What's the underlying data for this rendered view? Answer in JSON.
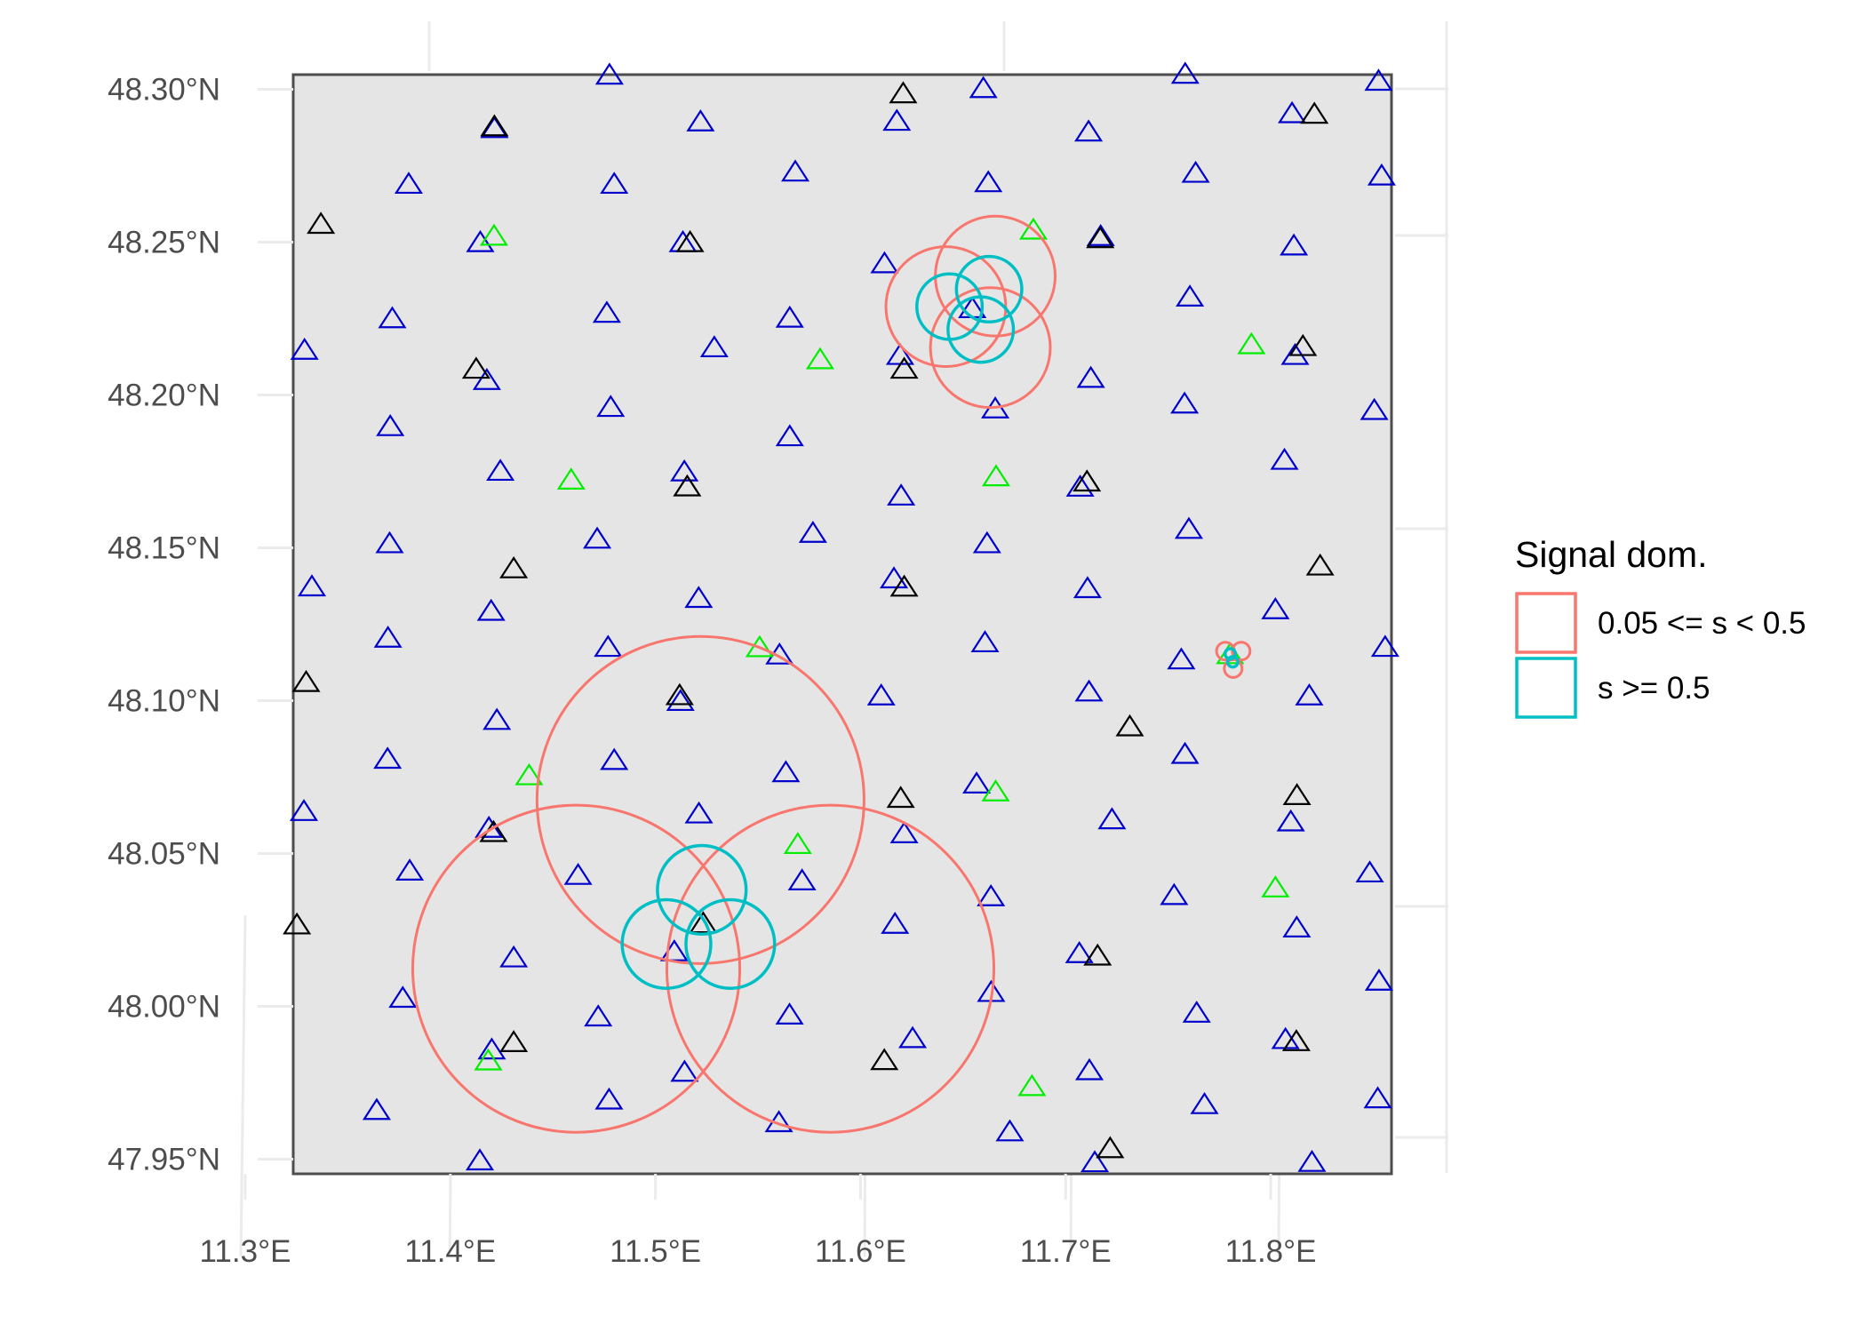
{
  "colors": {
    "circle_low": "#F8766D",
    "circle_high": "#00BFC4",
    "station_blue": "#0000CC",
    "station_green": "#00EE00",
    "station_black": "#000000",
    "panel_fill": "#E5E5E5",
    "panel_border": "#4D4D4D",
    "grid": "#EBEBEB"
  },
  "chart_data": {
    "type": "scatter",
    "title": "",
    "xlabel": "",
    "ylabel": "",
    "xlim": [
      11.3234,
      11.8589
    ],
    "ylim": [
      47.9452,
      48.3048
    ],
    "x_ticks": [
      {
        "value": 11.3,
        "label": "11.3°E"
      },
      {
        "value": 11.4,
        "label": "11.4°E"
      },
      {
        "value": 11.5,
        "label": "11.5°E"
      },
      {
        "value": 11.6,
        "label": "11.6°E"
      },
      {
        "value": 11.7,
        "label": "11.7°E"
      },
      {
        "value": 11.8,
        "label": "11.8°E"
      }
    ],
    "y_ticks": [
      {
        "value": 47.95,
        "label": "47.95°N"
      },
      {
        "value": 48.0,
        "label": "48.00°N"
      },
      {
        "value": 48.05,
        "label": "48.05°N"
      },
      {
        "value": 48.1,
        "label": "48.10°N"
      },
      {
        "value": 48.15,
        "label": "48.15°N"
      },
      {
        "value": 48.2,
        "label": "48.20°N"
      },
      {
        "value": 48.25,
        "label": "48.25°N"
      },
      {
        "value": 48.3,
        "label": "48.30°N"
      }
    ],
    "legend": {
      "title": "Signal dom.",
      "position": "right",
      "entries": [
        {
          "label": "0.05 <= s < 0.5",
          "color": "#F8766D"
        },
        {
          "label": "s >= 0.5",
          "color": "#00BFC4"
        }
      ]
    },
    "circles": {
      "low": [
        {
          "lon": 11.522,
          "lat": 48.0675,
          "radius_deg_lat": 0.0535
        },
        {
          "lon": 11.4614,
          "lat": 48.0123,
          "radius_deg_lat": 0.0535
        },
        {
          "lon": 11.5853,
          "lat": 48.0123,
          "radius_deg_lat": 0.0535
        },
        {
          "lon": 11.6657,
          "lat": 48.2389,
          "radius_deg_lat": 0.0196
        },
        {
          "lon": 11.6416,
          "lat": 48.2289,
          "radius_deg_lat": 0.0196
        },
        {
          "lon": 11.6633,
          "lat": 48.2155,
          "radius_deg_lat": 0.0196
        },
        {
          "lon": 11.7779,
          "lat": 48.1162,
          "radius_deg_lat": 0.0029
        },
        {
          "lon": 11.7856,
          "lat": 48.1162,
          "radius_deg_lat": 0.0029
        },
        {
          "lon": 11.7817,
          "lat": 48.1105,
          "radius_deg_lat": 0.0029
        }
      ],
      "high": [
        {
          "lon": 11.5226,
          "lat": 48.0381,
          "radius_deg_lat": 0.0145
        },
        {
          "lon": 11.5054,
          "lat": 48.0204,
          "radius_deg_lat": 0.0145
        },
        {
          "lon": 11.5365,
          "lat": 48.0204,
          "radius_deg_lat": 0.0145
        },
        {
          "lon": 11.6627,
          "lat": 48.2346,
          "radius_deg_lat": 0.0107
        },
        {
          "lon": 11.6434,
          "lat": 48.2289,
          "radius_deg_lat": 0.0107
        },
        {
          "lon": 11.6586,
          "lat": 48.2214,
          "radius_deg_lat": 0.0107
        },
        {
          "lon": 11.7803,
          "lat": 48.1153,
          "radius_deg_lat": 0.0017
        },
        {
          "lon": 11.7815,
          "lat": 48.1127,
          "radius_deg_lat": 0.0017
        }
      ]
    },
    "stations": {
      "blue": [
        [
          11.4776,
          48.3043
        ],
        [
          11.4215,
          48.2868
        ],
        [
          11.522,
          48.289
        ],
        [
          11.6599,
          48.2999
        ],
        [
          11.6177,
          48.2892
        ],
        [
          11.7583,
          48.3046
        ],
        [
          11.8104,
          48.2917
        ],
        [
          11.8526,
          48.3023
        ],
        [
          11.3797,
          48.2686
        ],
        [
          11.4799,
          48.2686
        ],
        [
          11.5682,
          48.2726
        ],
        [
          11.6623,
          48.2691
        ],
        [
          11.7112,
          48.2857
        ],
        [
          11.7634,
          48.2722
        ],
        [
          11.8541,
          48.2713
        ],
        [
          11.4146,
          48.2495
        ],
        [
          11.5134,
          48.2495
        ],
        [
          11.6117,
          48.2426
        ],
        [
          11.7171,
          48.2515
        ],
        [
          11.8113,
          48.2484
        ],
        [
          11.3289,
          48.2143
        ],
        [
          11.3717,
          48.2246
        ],
        [
          11.4763,
          48.2264
        ],
        [
          11.5287,
          48.2151
        ],
        [
          11.5655,
          48.2248
        ],
        [
          11.6193,
          48.2126
        ],
        [
          11.6545,
          48.2279
        ],
        [
          11.7606,
          48.2317
        ],
        [
          11.8119,
          48.2126
        ],
        [
          11.4178,
          48.2044
        ],
        [
          11.7123,
          48.2051
        ],
        [
          11.3707,
          48.1893
        ],
        [
          11.4782,
          48.1956
        ],
        [
          11.5655,
          48.186
        ],
        [
          11.6657,
          48.1951
        ],
        [
          11.758,
          48.1967
        ],
        [
          11.8505,
          48.1946
        ],
        [
          11.4244,
          48.1747
        ],
        [
          11.5141,
          48.1745
        ],
        [
          11.6198,
          48.1666
        ],
        [
          11.7071,
          48.1695
        ],
        [
          11.8067,
          48.1783
        ],
        [
          11.3704,
          48.151
        ],
        [
          11.4716,
          48.1525
        ],
        [
          11.5768,
          48.1544
        ],
        [
          11.6617,
          48.151
        ],
        [
          11.7601,
          48.1557
        ],
        [
          11.3325,
          48.1369
        ],
        [
          11.4199,
          48.1289
        ],
        [
          11.5211,
          48.1331
        ],
        [
          11.6163,
          48.1395
        ],
        [
          11.7107,
          48.1363
        ],
        [
          11.8023,
          48.1294
        ],
        [
          11.3696,
          48.1201
        ],
        [
          11.4769,
          48.1171
        ],
        [
          11.5605,
          48.1146
        ],
        [
          11.6607,
          48.1186
        ],
        [
          11.7564,
          48.113
        ],
        [
          11.8558,
          48.1171
        ],
        [
          11.5122,
          48.0994
        ],
        [
          11.6101,
          48.1012
        ],
        [
          11.7114,
          48.1025
        ],
        [
          11.8188,
          48.1012
        ],
        [
          11.4227,
          48.0932
        ],
        [
          11.3694,
          48.0805
        ],
        [
          11.4799,
          48.0801
        ],
        [
          11.5636,
          48.0761
        ],
        [
          11.6566,
          48.0724
        ],
        [
          11.7582,
          48.0821
        ],
        [
          11.3286,
          48.0634
        ],
        [
          11.5212,
          48.0626
        ],
        [
          11.6213,
          48.0561
        ],
        [
          11.7226,
          48.0607
        ],
        [
          11.8098,
          48.06
        ],
        [
          11.4188,
          48.0579
        ],
        [
          11.3802,
          48.0439
        ],
        [
          11.4623,
          48.0425
        ],
        [
          11.5715,
          48.0407
        ],
        [
          11.6636,
          48.0355
        ],
        [
          11.7529,
          48.0359
        ],
        [
          11.8483,
          48.0433
        ],
        [
          11.5092,
          48.0175
        ],
        [
          11.6168,
          48.0265
        ],
        [
          11.7067,
          48.0169
        ],
        [
          11.8127,
          48.0253
        ],
        [
          11.4309,
          48.0155
        ],
        [
          11.3768,
          48.0023
        ],
        [
          11.4721,
          47.9962
        ],
        [
          11.5654,
          47.9968
        ],
        [
          11.6637,
          48.0042
        ],
        [
          11.7639,
          47.9974
        ],
        [
          11.8528,
          48.0079
        ],
        [
          11.6254,
          47.9891
        ],
        [
          11.7116,
          47.9786
        ],
        [
          11.8072,
          47.9888
        ],
        [
          11.4202,
          47.9854
        ],
        [
          11.5142,
          47.9781
        ],
        [
          11.3641,
          47.9656
        ],
        [
          11.4774,
          47.969
        ],
        [
          11.5602,
          47.9616
        ],
        [
          11.6728,
          47.9586
        ],
        [
          11.7677,
          47.9675
        ],
        [
          11.8522,
          47.9694
        ],
        [
          11.4144,
          47.9491
        ],
        [
          11.7142,
          47.9485
        ],
        [
          11.8201,
          47.9486
        ]
      ],
      "green": [
        [
          11.4213,
          48.2516
        ],
        [
          11.6843,
          48.2536
        ],
        [
          11.5803,
          48.2112
        ],
        [
          11.7906,
          48.2161
        ],
        [
          11.4589,
          48.1718
        ],
        [
          11.6661,
          48.1729
        ],
        [
          11.5508,
          48.117
        ],
        [
          11.7802,
          48.1147
        ],
        [
          11.4384,
          48.0751
        ],
        [
          11.6659,
          48.0698
        ],
        [
          11.5694,
          48.0526
        ],
        [
          11.8023,
          48.0384
        ],
        [
          11.4185,
          47.9818
        ],
        [
          11.6836,
          47.9734
        ]
      ],
      "black": [
        [
          11.6208,
          48.2982
        ],
        [
          11.8213,
          48.2915
        ],
        [
          11.4215,
          48.2874
        ],
        [
          11.3369,
          48.2555
        ],
        [
          11.5169,
          48.2495
        ],
        [
          11.7169,
          48.2508
        ],
        [
          11.4126,
          48.2081
        ],
        [
          11.6213,
          48.2081
        ],
        [
          11.8157,
          48.2155
        ],
        [
          11.5155,
          48.1696
        ],
        [
          11.7104,
          48.1712
        ],
        [
          11.4309,
          48.1428
        ],
        [
          11.8241,
          48.1437
        ],
        [
          11.6213,
          48.1368
        ],
        [
          11.3297,
          48.1056
        ],
        [
          11.5118,
          48.1013
        ],
        [
          11.7313,
          48.0911
        ],
        [
          11.6196,
          48.0677
        ],
        [
          11.8128,
          48.0686
        ],
        [
          11.4211,
          48.0565
        ],
        [
          11.3252,
          48.0263
        ],
        [
          11.5233,
          48.0267
        ],
        [
          11.7156,
          48.0161
        ],
        [
          11.4309,
          47.9878
        ],
        [
          11.6116,
          47.9819
        ],
        [
          11.8125,
          47.9881
        ],
        [
          11.7217,
          47.9531
        ]
      ]
    }
  }
}
